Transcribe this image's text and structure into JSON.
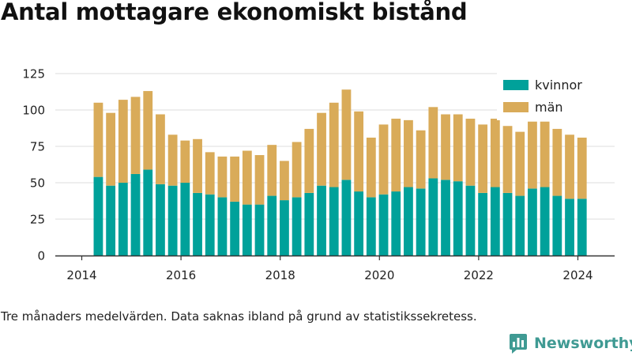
{
  "title": "Antal mottagare ekonomiskt bistånd",
  "note": "Tre månaders medelvärden. Data saknas ibland på grund av statistikssekretess.",
  "brand": {
    "name": "Newsworthy",
    "icon": "newsworthy-logo-icon"
  },
  "colors": {
    "kvinnor": "#00a19a",
    "man": "#d9ab59",
    "grid": "#dddddd",
    "axis": "#333333"
  },
  "chart_data": {
    "type": "bar",
    "stacked": true,
    "xlabel": "",
    "ylabel": "",
    "ylim": [
      0,
      135
    ],
    "yticks": [
      0,
      25,
      50,
      75,
      100,
      125
    ],
    "xticks": [
      "2014",
      "2016",
      "2018",
      "2020",
      "2022",
      "2024"
    ],
    "grid": true,
    "legend_position": "top-right",
    "categories": [
      "2014-05",
      "2014-08",
      "2014-11",
      "2015-02",
      "2015-05",
      "2015-08",
      "2015-11",
      "2016-02",
      "2016-05",
      "2016-08",
      "2016-11",
      "2017-02",
      "2017-05",
      "2017-08",
      "2017-11",
      "2018-02",
      "2018-05",
      "2018-08",
      "2018-11",
      "2019-02",
      "2019-05",
      "2019-08",
      "2019-11",
      "2020-02",
      "2020-05",
      "2020-08",
      "2020-11",
      "2021-02",
      "2021-05",
      "2021-08",
      "2021-11",
      "2022-02",
      "2022-05",
      "2022-08",
      "2022-11",
      "2023-02",
      "2023-05",
      "2023-08",
      "2023-11",
      "2024-02"
    ],
    "series": [
      {
        "name": "kvinnor",
        "color": "#00a19a",
        "values": [
          54,
          48,
          50,
          56,
          59,
          49,
          48,
          50,
          43,
          42,
          40,
          37,
          35,
          35,
          41,
          38,
          40,
          43,
          48,
          47,
          52,
          44,
          40,
          42,
          44,
          47,
          46,
          53,
          52,
          51,
          48,
          43,
          47,
          43,
          41,
          46,
          47,
          41,
          39,
          39
        ]
      },
      {
        "name": "män",
        "color": "#d9ab59",
        "values": [
          51,
          50,
          57,
          53,
          54,
          48,
          35,
          29,
          37,
          29,
          28,
          31,
          37,
          34,
          35,
          27,
          38,
          44,
          50,
          58,
          62,
          55,
          41,
          48,
          50,
          46,
          40,
          49,
          45,
          46,
          46,
          47,
          47,
          46,
          44,
          46,
          45,
          46,
          44,
          42
        ]
      }
    ]
  }
}
